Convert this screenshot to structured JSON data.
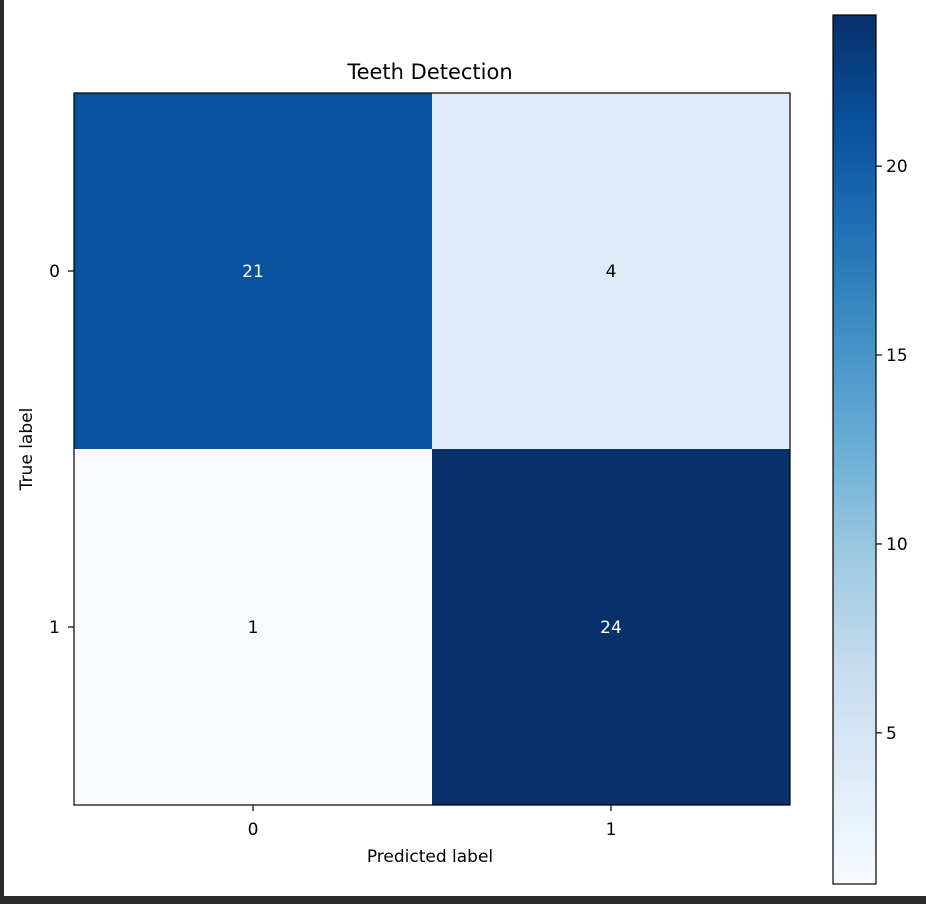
{
  "chart_data": {
    "type": "heatmap",
    "title": "Teeth Detection",
    "xlabel": "Predicted label",
    "ylabel": "True label",
    "x_categories": [
      "0",
      "1"
    ],
    "y_categories": [
      "0",
      "1"
    ],
    "values": [
      [
        21,
        4
      ],
      [
        1,
        24
      ]
    ],
    "colormap": "Blues",
    "colorbar": {
      "range": [
        1,
        24
      ],
      "ticks": [
        5,
        10,
        15,
        20
      ],
      "tick_labels": [
        "5",
        "10",
        "15",
        "20"
      ]
    }
  }
}
